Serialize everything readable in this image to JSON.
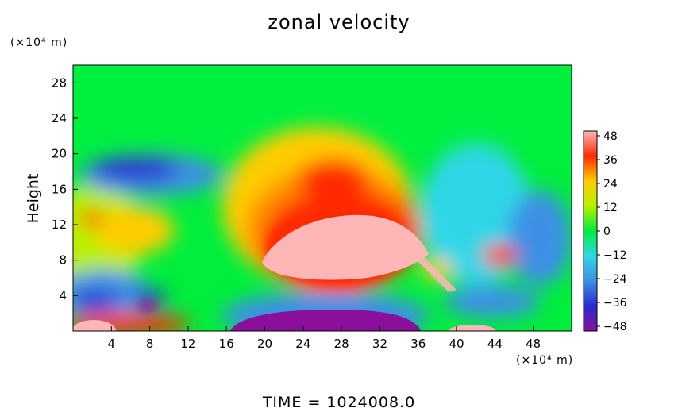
{
  "chart_data": {
    "type": "heatmap",
    "title": "zonal velocity",
    "ylabel": "Height",
    "y_unit": "(×10⁴ m)",
    "x_unit": "(×10⁴ m)",
    "footer": "TIME = 1024008.0",
    "xlim": [
      0,
      52
    ],
    "ylim": [
      0,
      30
    ],
    "x_ticks": [
      "4",
      "8",
      "12",
      "16",
      "20",
      "24",
      "28",
      "32",
      "36",
      "40",
      "44",
      "48"
    ],
    "y_ticks": [
      "4",
      "8",
      "12",
      "16",
      "20",
      "24",
      "28"
    ],
    "colorbar": {
      "range": [
        -48,
        48
      ],
      "ticks": [
        "48",
        "36",
        "24",
        "12",
        "0",
        "−12",
        "−24",
        "−36",
        "−48"
      ],
      "colors": [
        "#8a0f9a",
        "#2a2ad0",
        "#3d8fe6",
        "#2ed6e8",
        "#00ee3c",
        "#b8f000",
        "#ffcc00",
        "#ff2a00",
        "#ffb6b6"
      ]
    },
    "features": [
      {
        "label": "upper uniform layer",
        "x": [
          0,
          52
        ],
        "y": [
          20,
          30
        ],
        "value": 0
      },
      {
        "label": "strong positive core",
        "x": 28,
        "y": 9,
        "value": 48
      },
      {
        "label": "negative surface core",
        "x": 28,
        "y": 1,
        "value": -48
      },
      {
        "label": "negative upper-left region",
        "x": 8,
        "y": 18,
        "value": -36
      },
      {
        "label": "negative lower-left region",
        "x": 5,
        "y": 4,
        "value": -30
      },
      {
        "label": "positive surface-left",
        "x": 3,
        "y": 0.5,
        "value": 48
      }
    ]
  }
}
